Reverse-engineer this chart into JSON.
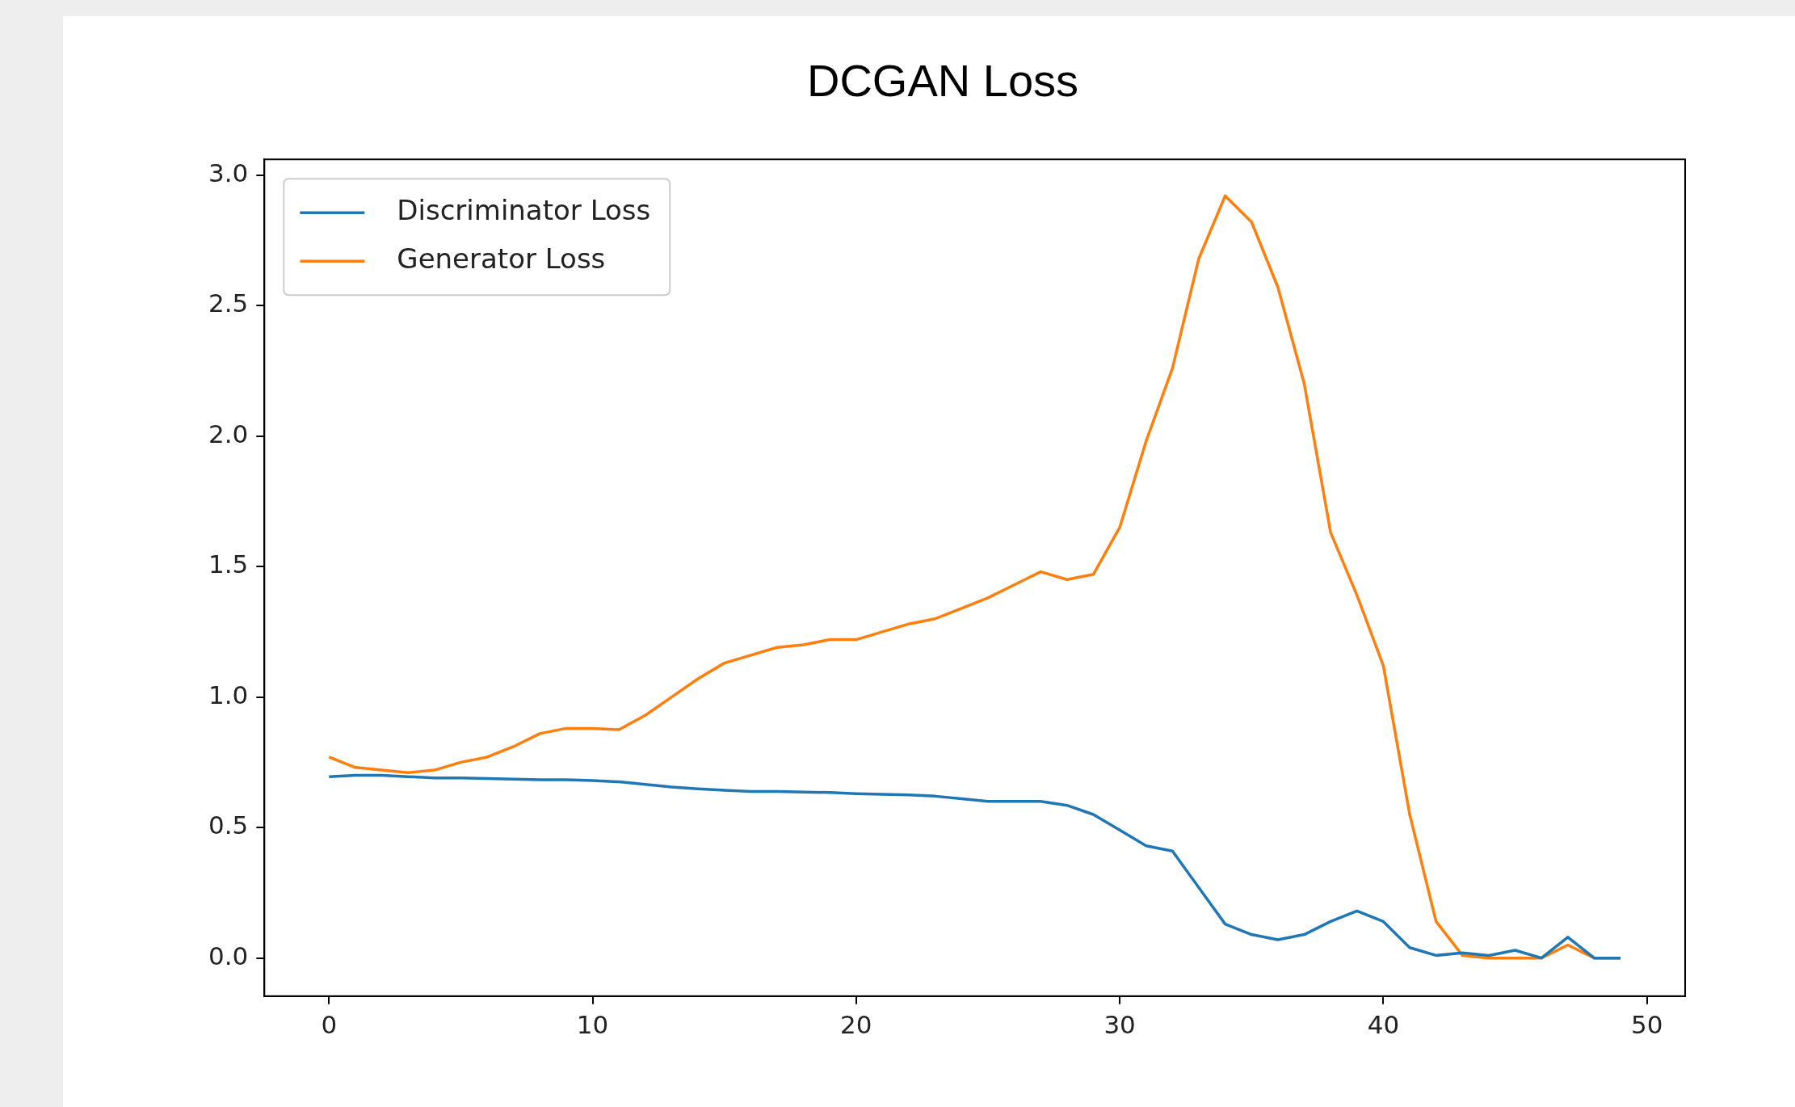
{
  "chart_data": {
    "type": "line",
    "title": "DCGAN Loss",
    "x": [
      0,
      1,
      2,
      3,
      4,
      5,
      6,
      7,
      8,
      9,
      10,
      11,
      12,
      13,
      14,
      15,
      16,
      17,
      18,
      19,
      20,
      21,
      22,
      23,
      24,
      25,
      26,
      27,
      28,
      29,
      30,
      31,
      32,
      33,
      34,
      35,
      36,
      37,
      38,
      39,
      40,
      41,
      42,
      43,
      44,
      45,
      46,
      47,
      48,
      49
    ],
    "series": [
      {
        "name": "Discriminator Loss",
        "color": "#1f77b4",
        "values": [
          0.695,
          0.7,
          0.7,
          0.695,
          0.69,
          0.69,
          0.688,
          0.685,
          0.683,
          0.683,
          0.68,
          0.675,
          0.665,
          0.655,
          0.648,
          0.643,
          0.638,
          0.638,
          0.636,
          0.634,
          0.63,
          0.627,
          0.625,
          0.62,
          0.61,
          0.6,
          0.6,
          0.6,
          0.585,
          0.55,
          0.49,
          0.43,
          0.41,
          0.27,
          0.13,
          0.09,
          0.07,
          0.09,
          0.14,
          0.18,
          0.14,
          0.04,
          0.01,
          0.02,
          0.01,
          0.03,
          0.0,
          0.08,
          0.0,
          0.0
        ]
      },
      {
        "name": "Generator Loss",
        "color": "#ff7f0e",
        "values": [
          0.77,
          0.73,
          0.72,
          0.71,
          0.72,
          0.75,
          0.77,
          0.81,
          0.86,
          0.88,
          0.88,
          0.875,
          0.93,
          1.0,
          1.07,
          1.13,
          1.16,
          1.19,
          1.2,
          1.22,
          1.22,
          1.25,
          1.28,
          1.3,
          1.34,
          1.38,
          1.43,
          1.48,
          1.45,
          1.47,
          1.65,
          1.98,
          2.26,
          2.68,
          2.92,
          2.82,
          2.57,
          2.2,
          1.63,
          1.39,
          1.12,
          0.55,
          0.14,
          0.01,
          0.0,
          0.0,
          0.0,
          0.05,
          0.0,
          0.0
        ]
      }
    ],
    "xlim": [
      -2.45,
      51.45
    ],
    "xticks": [
      0,
      10,
      20,
      30,
      40,
      50
    ],
    "ylim": [
      -0.146,
      3.06
    ],
    "yticks": [
      {
        "value": 0,
        "label": "0.0"
      },
      0.5,
      {
        "value": 1,
        "label": "1.0"
      },
      1.5,
      {
        "value": 2,
        "label": "2.0"
      },
      2.5,
      {
        "value": 3,
        "label": "3.0"
      }
    ],
    "grid": false,
    "legend": "top left",
    "marker": "none",
    "line_style": "solid"
  }
}
